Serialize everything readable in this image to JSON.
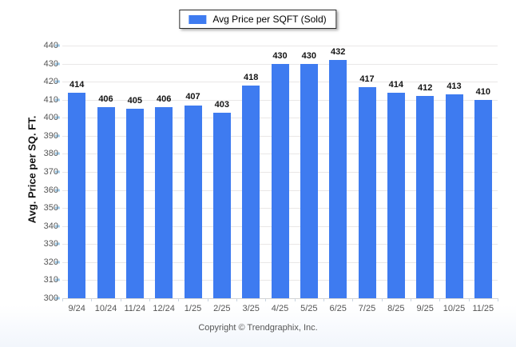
{
  "chart_data": {
    "type": "bar",
    "series_name": "Avg Price per SQFT (Sold)",
    "categories": [
      "9/24",
      "10/24",
      "11/24",
      "12/24",
      "1/25",
      "2/25",
      "3/25",
      "4/25",
      "5/25",
      "6/25",
      "7/25",
      "8/25",
      "9/25",
      "10/25",
      "11/25"
    ],
    "values": [
      414,
      406,
      405,
      406,
      407,
      403,
      418,
      430,
      430,
      432,
      417,
      414,
      412,
      413,
      410
    ],
    "xlabel": "",
    "ylabel": "Avg. Price per SQ. FT.",
    "ylim": [
      300,
      440
    ],
    "ytick_step": 10,
    "grid": true,
    "legend_position": "top-center",
    "colors": {
      "bar": "#3e7bf0",
      "grid": "#e9e7e7",
      "baseline": "#d4d4d4",
      "y_tick": "#a9d3f0",
      "x_tick": "#c9d4e0",
      "axis_text": "#555555",
      "value_text": "#141414",
      "legend_border": "#2a2a2a"
    }
  },
  "footer": {
    "copyright": "Copyright © Trendgraphix, Inc."
  }
}
